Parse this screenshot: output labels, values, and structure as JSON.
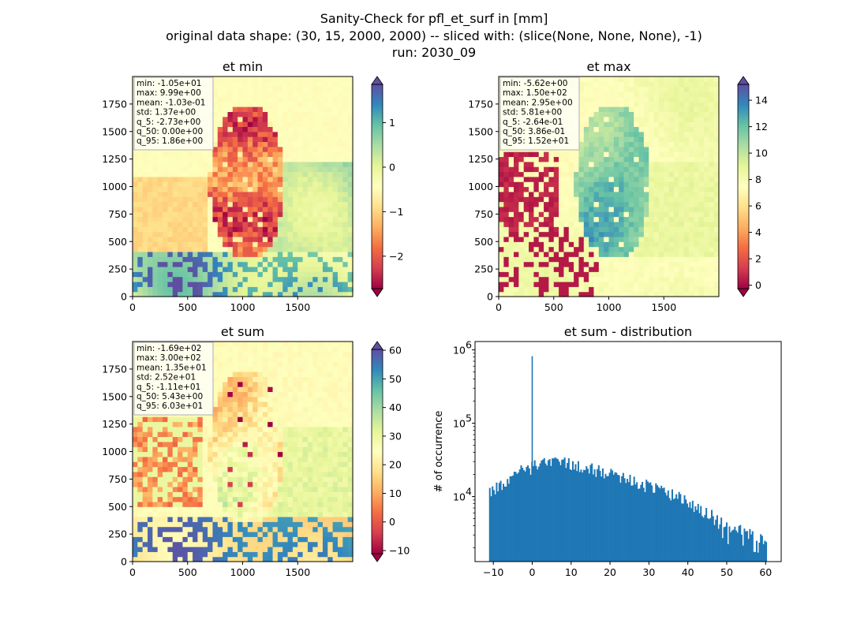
{
  "suptitle": {
    "line1": "Sanity-Check for pfl_et_surf in [mm]",
    "line2": "original data shape: (30, 15, 2000, 2000) -- sliced with: (slice(None, None, None), -1)",
    "line3": "run: 2030_09"
  },
  "chart_data": [
    {
      "type": "heatmap",
      "id": "et-min",
      "title": "et min",
      "xlim": [
        0,
        2000
      ],
      "ylim": [
        0,
        2000
      ],
      "xticks": [
        0,
        500,
        1000,
        1500
      ],
      "yticks": [
        0,
        250,
        500,
        750,
        1000,
        1250,
        1500,
        1750
      ],
      "colormap": "Spectral",
      "color_range": [
        -2.73,
        1.86
      ],
      "colorbar_ticks": [
        -2,
        -1,
        0,
        1
      ],
      "colorbar_ticklabels": [
        "−2",
        "−1",
        "0",
        "1"
      ],
      "colorbar_extend": "both",
      "stats": [
        "min: -1.05e+01",
        "max: 9.99e+00",
        "mean: -1.03e-01",
        "std: 1.37e+00",
        "q_5: -2.73e+00",
        "q_50: 0.00e+00",
        "q_95: 1.86e+00"
      ]
    },
    {
      "type": "heatmap",
      "id": "et-max",
      "title": "et max",
      "xlim": [
        0,
        2000
      ],
      "ylim": [
        0,
        2000
      ],
      "xticks": [
        0,
        500,
        1000,
        1500
      ],
      "yticks": [
        0,
        250,
        500,
        750,
        1000,
        1250,
        1500,
        1750
      ],
      "colormap": "Spectral",
      "color_range": [
        -0.264,
        15.2
      ],
      "colorbar_ticks": [
        0,
        2,
        4,
        6,
        8,
        10,
        12,
        14
      ],
      "colorbar_ticklabels": [
        "0",
        "2",
        "4",
        "6",
        "8",
        "10",
        "12",
        "14"
      ],
      "colorbar_extend": "both",
      "stats": [
        "min: -5.62e+00",
        "max: 1.50e+02",
        "mean: 2.95e+00",
        "std: 5.81e+00",
        "q_5: -2.64e-01",
        "q_50: 3.86e-01",
        "q_95: 1.52e+01"
      ]
    },
    {
      "type": "heatmap",
      "id": "et-sum",
      "title": "et sum",
      "xlim": [
        0,
        2000
      ],
      "ylim": [
        0,
        2000
      ],
      "xticks": [
        0,
        500,
        1000,
        1500
      ],
      "yticks": [
        0,
        250,
        500,
        750,
        1000,
        1250,
        1500,
        1750
      ],
      "colormap": "Spectral",
      "color_range": [
        -11.1,
        60.3
      ],
      "colorbar_ticks": [
        -10,
        0,
        10,
        20,
        30,
        40,
        50,
        60
      ],
      "colorbar_ticklabels": [
        "−10",
        "0",
        "10",
        "20",
        "30",
        "40",
        "50",
        "60"
      ],
      "colorbar_extend": "both",
      "stats": [
        "min: -1.69e+02",
        "max: 3.00e+02",
        "mean: 1.35e+01",
        "std: 2.52e+01",
        "q_5: -1.11e+01",
        "q_50: 5.43e+00",
        "q_95: 6.03e+01"
      ]
    },
    {
      "type": "bar",
      "id": "et-sum-distribution",
      "title": "et sum - distribution",
      "ylabel": "# of occurrence",
      "xlabel": "",
      "yscale": "log",
      "xlim": [
        -14.7,
        64
      ],
      "ylim": [
        1300,
        1300000
      ],
      "xticks": [
        -10,
        0,
        10,
        20,
        30,
        40,
        50,
        60
      ],
      "xticklabels": [
        "−10",
        "0",
        "10",
        "20",
        "30",
        "40",
        "50",
        "60"
      ],
      "yticks": [
        10000,
        100000,
        1000000
      ],
      "bar_color": "#1f77b4",
      "spike": {
        "x": 0,
        "y": 820000
      },
      "profile_x": [
        -11.1,
        -10,
        -8,
        -6,
        -4,
        -2,
        -0.5,
        0.5,
        2,
        4,
        6,
        8,
        10,
        12,
        14,
        16,
        18,
        20,
        22,
        24,
        26,
        28,
        30,
        32,
        34,
        36,
        38,
        40,
        42,
        44,
        46,
        48,
        50,
        52,
        54,
        56,
        58,
        60.3
      ],
      "profile_y": [
        12000,
        12500,
        14500,
        18500,
        22000,
        24500,
        24000,
        28000,
        27000,
        30000,
        32000,
        31000,
        29000,
        26000,
        24500,
        23000,
        21500,
        20000,
        18500,
        17000,
        16000,
        15000,
        14000,
        12500,
        11500,
        10500,
        9500,
        8500,
        7500,
        6500,
        5600,
        4800,
        4100,
        3700,
        3400,
        3100,
        2900,
        2600
      ]
    }
  ]
}
